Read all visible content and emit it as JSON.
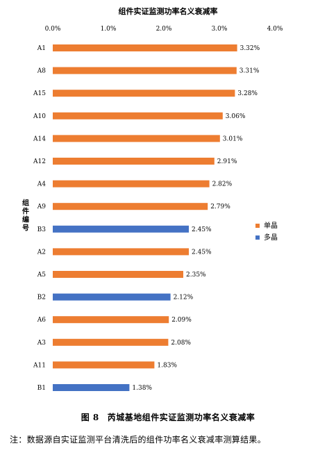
{
  "chart_data": {
    "type": "bar",
    "orientation": "horizontal",
    "title": "组件实证监测功率名义衰减率",
    "ylabel": "组件编号",
    "xlabel": "",
    "xlim": [
      0,
      4
    ],
    "xticks": [
      "0.0%",
      "1.0%",
      "2.0%",
      "3.0%",
      "4.0%"
    ],
    "x_axis_position": "top",
    "grid": false,
    "legend_position": "right",
    "categories": [
      "A1",
      "A8",
      "A15",
      "A10",
      "A14",
      "A12",
      "A4",
      "A9",
      "B3",
      "A2",
      "A5",
      "B2",
      "A6",
      "A3",
      "A11",
      "B1"
    ],
    "values": [
      3.32,
      3.31,
      3.28,
      3.06,
      3.01,
      2.91,
      2.82,
      2.79,
      2.45,
      2.45,
      2.35,
      2.12,
      2.09,
      2.08,
      1.83,
      1.38
    ],
    "value_labels": [
      "3.32%",
      "3.31%",
      "3.28%",
      "3.06%",
      "3.01%",
      "2.91%",
      "2.82%",
      "2.79%",
      "2.45%",
      "2.45%",
      "2.35%",
      "2.12%",
      "2.09%",
      "2.08%",
      "1.83%",
      "1.38%"
    ],
    "group": [
      "单晶",
      "单晶",
      "单晶",
      "单晶",
      "单晶",
      "单晶",
      "单晶",
      "单晶",
      "多晶",
      "单晶",
      "单晶",
      "多晶",
      "单晶",
      "单晶",
      "单晶",
      "多晶"
    ],
    "legend": [
      {
        "name": "单晶",
        "color": "#ED7D31"
      },
      {
        "name": "多晶",
        "color": "#4472C4"
      }
    ]
  },
  "figure": {
    "number": "图 8",
    "caption": "芮城基地组件实证监测功率名义衰减率"
  },
  "note": "注：数据源自实证监测平台清洗后的组件功率名义衰减率测算结果。"
}
